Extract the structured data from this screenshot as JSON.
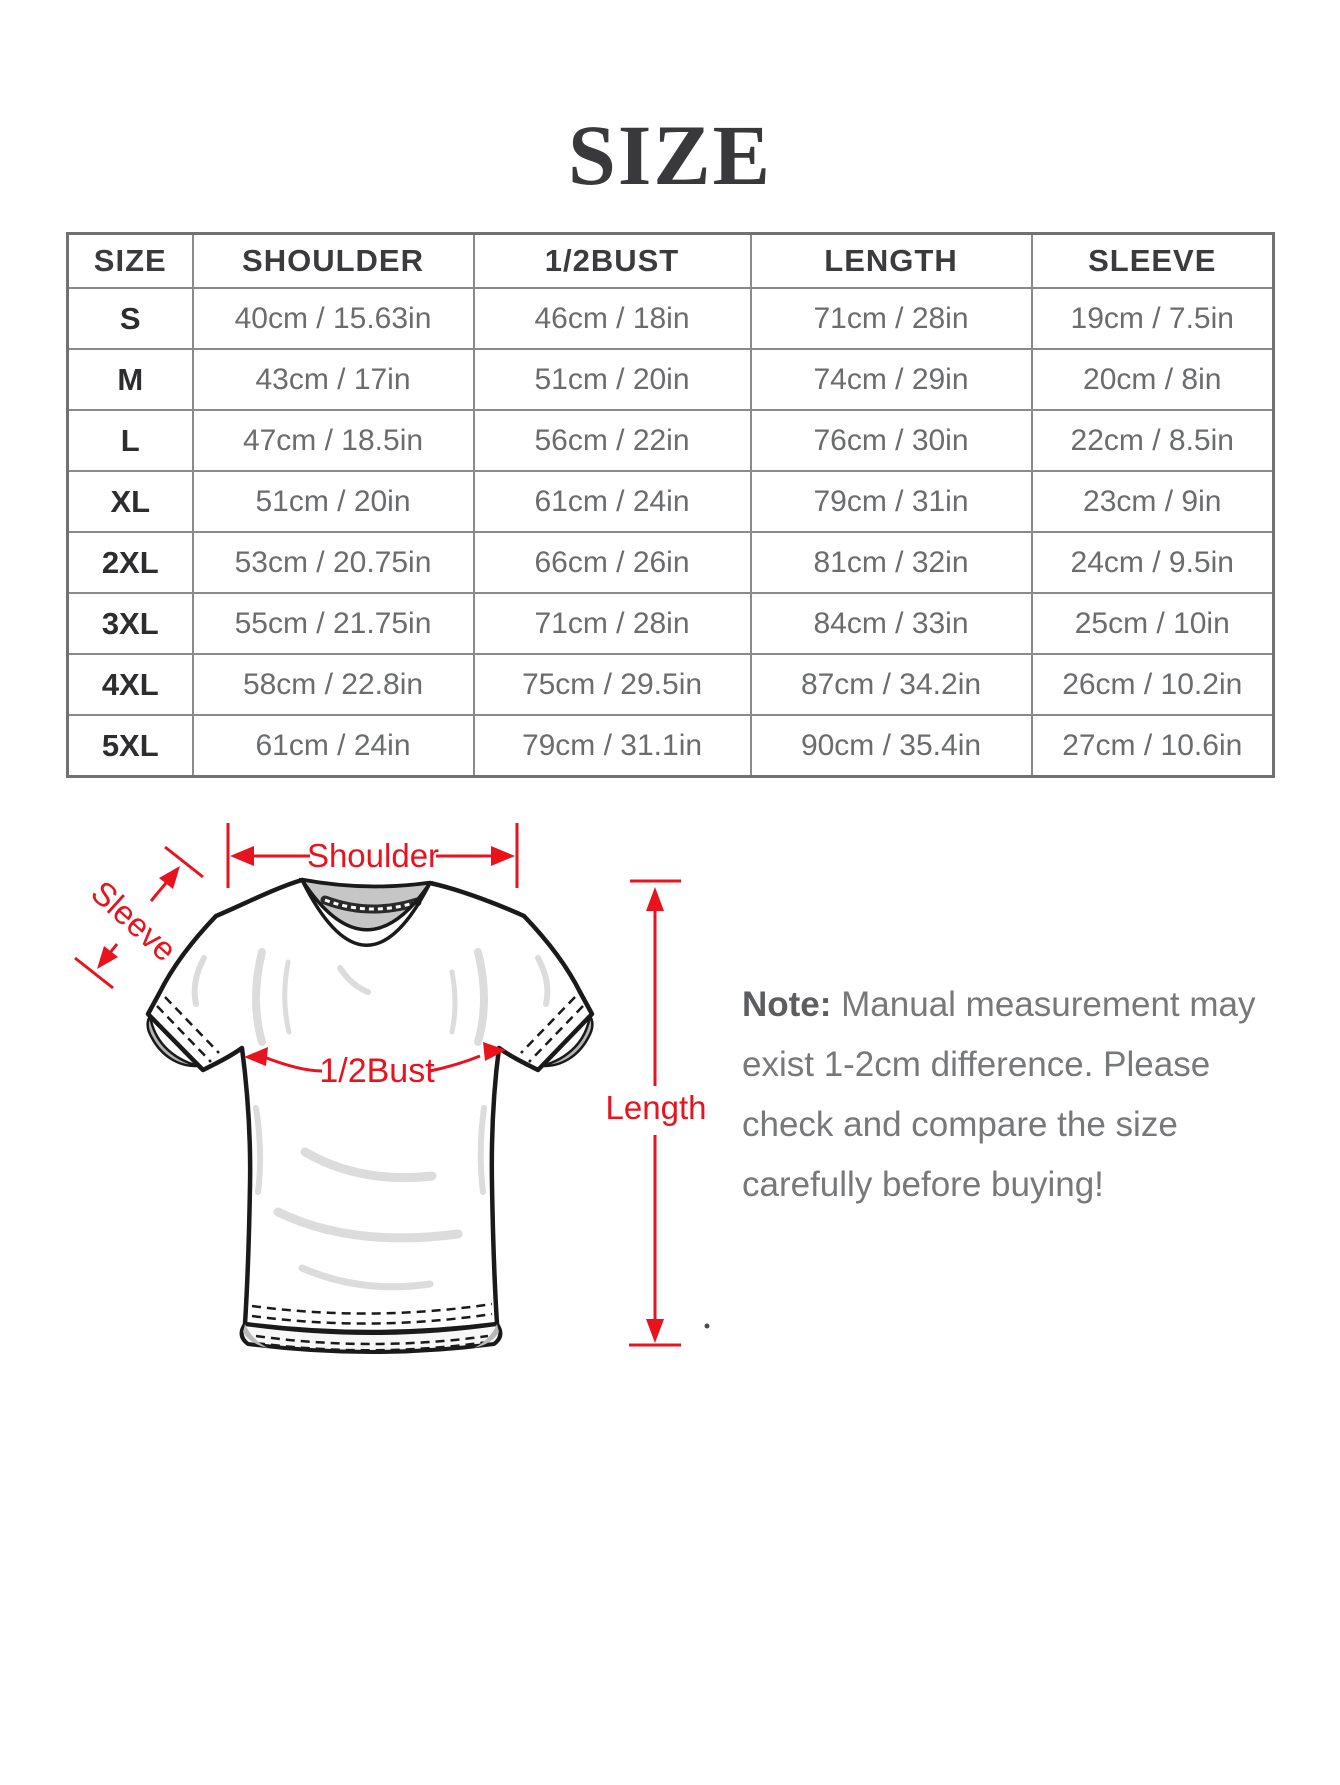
{
  "title": "SIZE",
  "table": {
    "columns": [
      "SIZE",
      "SHOULDER",
      "1/2BUST",
      "LENGTH",
      "SLEEVE"
    ],
    "rows": [
      {
        "size": "S",
        "cells": [
          "40cm / 15.63in",
          "46cm / 18in",
          "71cm / 28in",
          "19cm / 7.5in"
        ]
      },
      {
        "size": "M",
        "cells": [
          "43cm / 17in",
          "51cm / 20in",
          "74cm / 29in",
          "20cm / 8in"
        ]
      },
      {
        "size": "L",
        "cells": [
          "47cm / 18.5in",
          "56cm / 22in",
          "76cm / 30in",
          "22cm / 8.5in"
        ]
      },
      {
        "size": "XL",
        "cells": [
          "51cm / 20in",
          "61cm / 24in",
          "79cm / 31in",
          "23cm / 9in"
        ]
      },
      {
        "size": "2XL",
        "cells": [
          "53cm / 20.75in",
          "66cm / 26in",
          "81cm / 32in",
          "24cm / 9.5in"
        ]
      },
      {
        "size": "3XL",
        "cells": [
          "55cm / 21.75in",
          "71cm / 28in",
          "84cm / 33in",
          "25cm / 10in"
        ]
      },
      {
        "size": "4XL",
        "cells": [
          "58cm / 22.8in",
          "75cm / 29.5in",
          "87cm / 34.2in",
          "26cm / 10.2in"
        ]
      },
      {
        "size": "5XL",
        "cells": [
          "61cm / 24in",
          "79cm / 31.1in",
          "90cm / 35.4in",
          "27cm / 10.6in"
        ]
      }
    ]
  },
  "diagram": {
    "labels": {
      "shoulder": "Shoulder",
      "sleeve": "Sleeve",
      "half_bust": "1/2Bust",
      "length": "Length"
    }
  },
  "note": {
    "label": "Note:",
    "full_text": "Manual measurement may exist 1-2cm difference. Please check and compare the size carefully before buying!",
    "lines": [
      "Manual measurement may",
      "exist 1-2cm difference. Please",
      "check and compare the size",
      "carefully before buying!"
    ]
  },
  "colors": {
    "accent_red": "#e8131d",
    "table_border": "#8a8a8c",
    "header_text": "#3b3b3d",
    "value_text": "#6b6c6e",
    "note_text": "#77787a",
    "shirt_outline": "#1a1a1a",
    "collar_gray": "#c6c6c6"
  }
}
